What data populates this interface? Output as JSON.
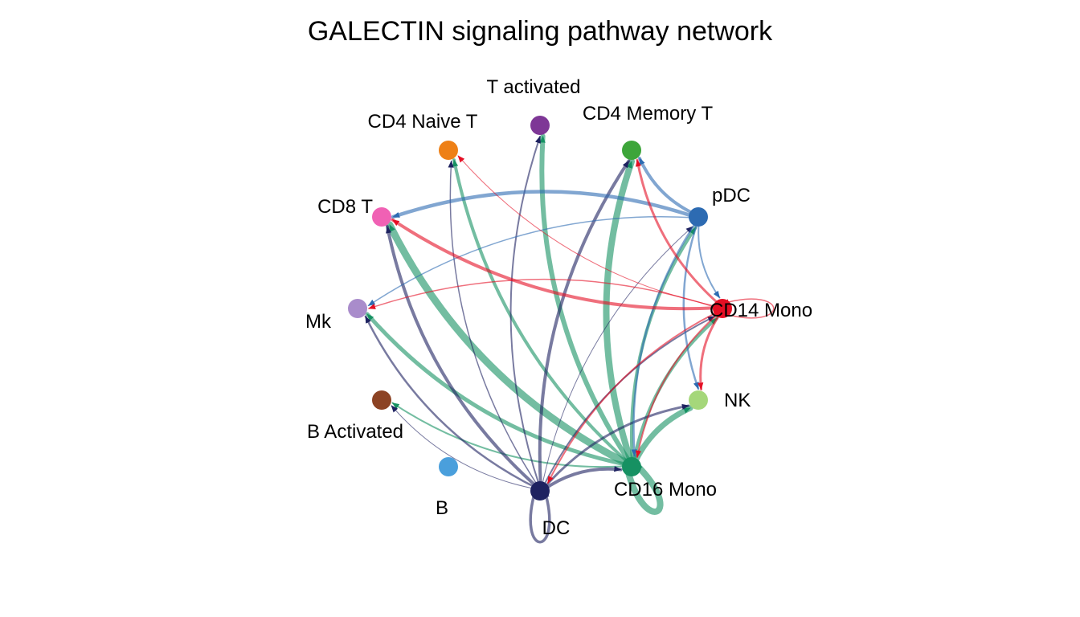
{
  "title": "GALECTIN signaling pathway network",
  "nodes": [
    {
      "id": "tact",
      "label": "T activated",
      "color": "#7E3796"
    },
    {
      "id": "cd4n",
      "label": "CD4 Naive T",
      "color": "#EE8016"
    },
    {
      "id": "cd4m",
      "label": "CD4 Memory T",
      "color": "#3DA53A"
    },
    {
      "id": "pdc",
      "label": "pDC",
      "color": "#2D6BB2"
    },
    {
      "id": "cd8",
      "label": "CD8 T",
      "color": "#F061B4"
    },
    {
      "id": "cd14",
      "label": "CD14 Mono",
      "color": "#E50F24"
    },
    {
      "id": "mk",
      "label": "Mk",
      "color": "#A98CCB"
    },
    {
      "id": "nk",
      "label": "NK",
      "color": "#A5D77A"
    },
    {
      "id": "bact",
      "label": "B Activated",
      "color": "#8C4324"
    },
    {
      "id": "cd16",
      "label": "CD16 Mono",
      "color": "#169162"
    },
    {
      "id": "b",
      "label": "B",
      "color": "#4A9FDC"
    },
    {
      "id": "dc",
      "label": "DC",
      "color": "#1E2260"
    }
  ],
  "edges": [
    {
      "from": "cd16",
      "to": "cd8",
      "weight": 9
    },
    {
      "from": "cd16",
      "to": "cd4m",
      "weight": 8
    },
    {
      "from": "cd16",
      "to": "tact",
      "weight": 6
    },
    {
      "from": "cd16",
      "to": "cd4n",
      "weight": 4
    },
    {
      "from": "cd16",
      "to": "mk",
      "weight": 5
    },
    {
      "from": "cd16",
      "to": "bact",
      "weight": 2
    },
    {
      "from": "cd16",
      "to": "cd14",
      "weight": 4
    },
    {
      "from": "cd16",
      "to": "pdc",
      "weight": 4
    },
    {
      "from": "cd16",
      "to": "nk",
      "weight": 7
    },
    {
      "from": "cd16",
      "to": "cd16",
      "weight": 8
    },
    {
      "from": "dc",
      "to": "cd8",
      "weight": 4
    },
    {
      "from": "dc",
      "to": "cd4m",
      "weight": 4
    },
    {
      "from": "dc",
      "to": "tact",
      "weight": 2
    },
    {
      "from": "dc",
      "to": "cd4n",
      "weight": 1.5
    },
    {
      "from": "dc",
      "to": "mk",
      "weight": 2.5
    },
    {
      "from": "dc",
      "to": "bact",
      "weight": 1
    },
    {
      "from": "dc",
      "to": "cd14",
      "weight": 2
    },
    {
      "from": "dc",
      "to": "cd16",
      "weight": 4
    },
    {
      "from": "dc",
      "to": "nk",
      "weight": 3
    },
    {
      "from": "dc",
      "to": "dc",
      "weight": 3.5
    },
    {
      "from": "dc",
      "to": "pdc",
      "weight": 1
    },
    {
      "from": "pdc",
      "to": "cd8",
      "weight": 4.5
    },
    {
      "from": "pdc",
      "to": "cd4m",
      "weight": 4
    },
    {
      "from": "pdc",
      "to": "mk",
      "weight": 1.5
    },
    {
      "from": "pdc",
      "to": "cd14",
      "weight": 2
    },
    {
      "from": "pdc",
      "to": "nk",
      "weight": 2.5
    },
    {
      "from": "pdc",
      "to": "cd16",
      "weight": 2.5
    },
    {
      "from": "cd14",
      "to": "cd8",
      "weight": 4
    },
    {
      "from": "cd14",
      "to": "cd4m",
      "weight": 3
    },
    {
      "from": "cd14",
      "to": "cd4n",
      "weight": 1
    },
    {
      "from": "cd14",
      "to": "mk",
      "weight": 1.5
    },
    {
      "from": "cd14",
      "to": "nk",
      "weight": 3
    },
    {
      "from": "cd14",
      "to": "cd16",
      "weight": 2
    },
    {
      "from": "cd14",
      "to": "dc",
      "weight": 2
    },
    {
      "from": "cd14",
      "to": "cd14",
      "weight": 1.5
    }
  ]
}
